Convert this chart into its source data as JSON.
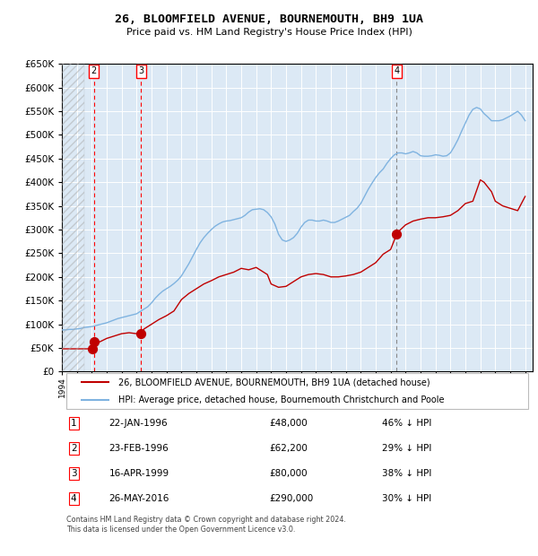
{
  "title": "26, BLOOMFIELD AVENUE, BOURNEMOUTH, BH9 1UA",
  "subtitle": "Price paid vs. HM Land Registry's House Price Index (HPI)",
  "bg_color": "#dce9f5",
  "hpi_color": "#7fb3e0",
  "price_color": "#c00000",
  "ylim": [
    0,
    650000
  ],
  "ytick_step": 50000,
  "xmin": 1994.0,
  "xmax": 2025.5,
  "sale_dates": [
    1996.06,
    1996.15,
    1999.29,
    2016.4
  ],
  "sale_prices": [
    48000,
    62200,
    80000,
    290000
  ],
  "vline_dates_red": [
    1996.15,
    1999.29
  ],
  "vline_dates_gray": [
    2016.4
  ],
  "legend_price_label": "26, BLOOMFIELD AVENUE, BOURNEMOUTH, BH9 1UA (detached house)",
  "legend_hpi_label": "HPI: Average price, detached house, Bournemouth Christchurch and Poole",
  "table_rows": [
    {
      "num": "1",
      "date": "22-JAN-1996",
      "price": "£48,000",
      "pct": "46% ↓ HPI"
    },
    {
      "num": "2",
      "date": "23-FEB-1996",
      "price": "£62,200",
      "pct": "29% ↓ HPI"
    },
    {
      "num": "3",
      "date": "16-APR-1999",
      "price": "£80,000",
      "pct": "38% ↓ HPI"
    },
    {
      "num": "4",
      "date": "26-MAY-2016",
      "price": "£290,000",
      "pct": "30% ↓ HPI"
    }
  ],
  "footnote": "Contains HM Land Registry data © Crown copyright and database right 2024.\nThis data is licensed under the Open Government Licence v3.0.",
  "hpi_x": [
    1994.0,
    1994.25,
    1994.5,
    1994.75,
    1995.0,
    1995.25,
    1995.5,
    1995.75,
    1996.0,
    1996.25,
    1996.5,
    1996.75,
    1997.0,
    1997.25,
    1997.5,
    1997.75,
    1998.0,
    1998.25,
    1998.5,
    1998.75,
    1999.0,
    1999.25,
    1999.5,
    1999.75,
    2000.0,
    2000.25,
    2000.5,
    2000.75,
    2001.0,
    2001.25,
    2001.5,
    2001.75,
    2002.0,
    2002.25,
    2002.5,
    2002.75,
    2003.0,
    2003.25,
    2003.5,
    2003.75,
    2004.0,
    2004.25,
    2004.5,
    2004.75,
    2005.0,
    2005.25,
    2005.5,
    2005.75,
    2006.0,
    2006.25,
    2006.5,
    2006.75,
    2007.0,
    2007.25,
    2007.5,
    2007.75,
    2008.0,
    2008.25,
    2008.5,
    2008.75,
    2009.0,
    2009.25,
    2009.5,
    2009.75,
    2010.0,
    2010.25,
    2010.5,
    2010.75,
    2011.0,
    2011.25,
    2011.5,
    2011.75,
    2012.0,
    2012.25,
    2012.5,
    2012.75,
    2013.0,
    2013.25,
    2013.5,
    2013.75,
    2014.0,
    2014.25,
    2014.5,
    2014.75,
    2015.0,
    2015.25,
    2015.5,
    2015.75,
    2016.0,
    2016.25,
    2016.5,
    2016.75,
    2017.0,
    2017.25,
    2017.5,
    2017.75,
    2018.0,
    2018.25,
    2018.5,
    2018.75,
    2019.0,
    2019.25,
    2019.5,
    2019.75,
    2020.0,
    2020.25,
    2020.5,
    2020.75,
    2021.0,
    2021.25,
    2021.5,
    2021.75,
    2022.0,
    2022.25,
    2022.5,
    2022.75,
    2023.0,
    2023.25,
    2023.5,
    2023.75,
    2024.0,
    2024.25,
    2024.5,
    2024.75,
    2025.0
  ],
  "hpi_y": [
    88000,
    88000,
    89000,
    89000,
    90000,
    91000,
    93000,
    94000,
    95000,
    97000,
    99000,
    101000,
    103000,
    106000,
    109000,
    112000,
    114000,
    116000,
    118000,
    120000,
    122000,
    127000,
    132000,
    137000,
    145000,
    155000,
    163000,
    170000,
    175000,
    180000,
    186000,
    193000,
    202000,
    215000,
    228000,
    243000,
    258000,
    272000,
    283000,
    292000,
    300000,
    307000,
    312000,
    316000,
    318000,
    319000,
    321000,
    323000,
    325000,
    330000,
    337000,
    342000,
    343000,
    344000,
    342000,
    336000,
    327000,
    312000,
    290000,
    278000,
    275000,
    278000,
    283000,
    292000,
    305000,
    315000,
    320000,
    320000,
    318000,
    318000,
    320000,
    318000,
    315000,
    315000,
    318000,
    322000,
    326000,
    330000,
    338000,
    345000,
    355000,
    370000,
    385000,
    398000,
    410000,
    420000,
    428000,
    440000,
    450000,
    458000,
    462000,
    462000,
    460000,
    462000,
    465000,
    462000,
    456000,
    455000,
    455000,
    456000,
    458000,
    457000,
    455000,
    456000,
    462000,
    475000,
    490000,
    508000,
    525000,
    542000,
    554000,
    558000,
    555000,
    545000,
    538000,
    530000,
    530000,
    530000,
    532000,
    536000,
    540000,
    545000,
    550000,
    542000,
    530000
  ],
  "price_x": [
    1994.0,
    1994.5,
    1995.0,
    1995.5,
    1996.0,
    1996.06,
    1996.15,
    1996.5,
    1997.0,
    1997.5,
    1998.0,
    1998.5,
    1999.0,
    1999.29,
    1999.5,
    2000.0,
    2000.5,
    2001.0,
    2001.5,
    2002.0,
    2002.5,
    2003.0,
    2003.5,
    2004.0,
    2004.5,
    2005.0,
    2005.5,
    2006.0,
    2006.5,
    2007.0,
    2007.25,
    2007.5,
    2007.75,
    2008.0,
    2008.5,
    2009.0,
    2009.5,
    2010.0,
    2010.5,
    2011.0,
    2011.5,
    2012.0,
    2012.5,
    2013.0,
    2013.5,
    2014.0,
    2014.5,
    2015.0,
    2015.5,
    2016.0,
    2016.4,
    2016.5,
    2017.0,
    2017.5,
    2018.0,
    2018.5,
    2019.0,
    2019.5,
    2020.0,
    2020.5,
    2021.0,
    2021.5,
    2022.0,
    2022.25,
    2022.5,
    2022.75,
    2023.0,
    2023.5,
    2024.0,
    2024.5,
    2025.0
  ],
  "price_y": [
    48000,
    48000,
    48000,
    48000,
    48000,
    48000,
    62200,
    62200,
    70000,
    75000,
    80000,
    82000,
    80000,
    80000,
    90000,
    100000,
    110000,
    118000,
    128000,
    152000,
    165000,
    175000,
    185000,
    192000,
    200000,
    205000,
    210000,
    218000,
    215000,
    220000,
    215000,
    210000,
    205000,
    185000,
    178000,
    180000,
    190000,
    200000,
    205000,
    207000,
    205000,
    200000,
    200000,
    202000,
    205000,
    210000,
    220000,
    230000,
    248000,
    258000,
    290000,
    295000,
    310000,
    318000,
    322000,
    325000,
    325000,
    327000,
    330000,
    340000,
    355000,
    360000,
    405000,
    400000,
    390000,
    380000,
    360000,
    350000,
    345000,
    340000,
    370000
  ]
}
